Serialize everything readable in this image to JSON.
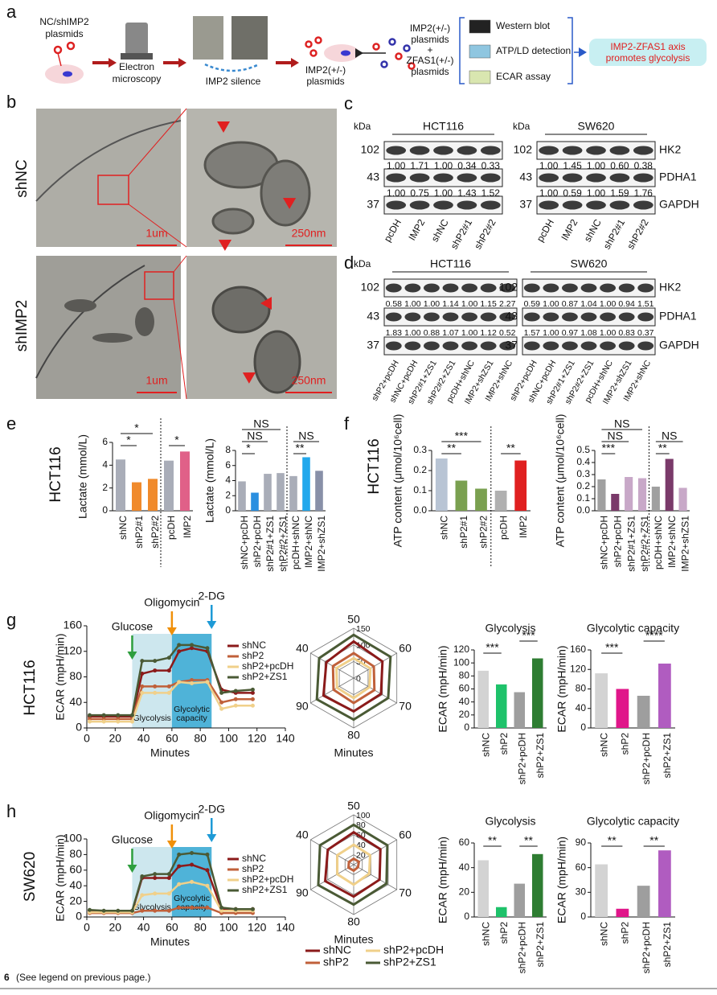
{
  "figure_number": "6",
  "caption": "(See legend on previous page.)",
  "a": {
    "letter": "a",
    "plasmid_label": [
      "NC/shIMP2",
      "plasmids"
    ],
    "microscopy_label": [
      "Electron",
      "microscopy"
    ],
    "silence_label": "IMP2 silence",
    "imp2_label": [
      "IMP2(+/-)",
      "plasmids"
    ],
    "combo_label": [
      "IMP2(+/-)",
      "plasmids",
      "+",
      "ZFAS1(+/-)",
      "plasmids"
    ],
    "assays": [
      "Western blot",
      "ATP/LD detection",
      "ECAR assay"
    ],
    "result": [
      "IMP2-ZFAS1 axis",
      "promotes glycolysis"
    ]
  },
  "b": {
    "letter": "b",
    "rows": [
      "shNC",
      "shIMP2"
    ],
    "scale_low": "1um",
    "scale_high": "250nm"
  },
  "c": {
    "letter": "c",
    "kda": "kDa",
    "markers": [
      "102",
      "43",
      "37"
    ],
    "proteins": [
      "HK2",
      "PDHA1",
      "GAPDH"
    ],
    "lanes": [
      "pcDH",
      "IMP2",
      "shNC",
      "shP2#1",
      "shP2#2"
    ],
    "blots": [
      {
        "cell": "HCT116",
        "quant": [
          [
            "1.00",
            "1.71",
            "1.00",
            "0.34",
            "0.33"
          ],
          [
            "1.00",
            "0.75",
            "1.00",
            "1.43",
            "1.52"
          ]
        ]
      },
      {
        "cell": "SW620",
        "quant": [
          [
            "1.00",
            "1.45",
            "1.00",
            "0.60",
            "0.38"
          ],
          [
            "1.00",
            "0.59",
            "1.00",
            "1.59",
            "1.76"
          ]
        ]
      }
    ]
  },
  "d": {
    "letter": "d",
    "kda": "kDa",
    "markers": [
      "102",
      "43",
      "37"
    ],
    "proteins": [
      "HK2",
      "PDHA1",
      "GAPDH"
    ],
    "lanes": [
      "shP2+pcDH",
      "shNC+pcDH",
      "shP2#1+ZS1",
      "shP2#2+ZS1",
      "pcDH+shNC",
      "IMP2+shZS1",
      "IMP2+shNC"
    ],
    "blots": [
      {
        "cell": "HCT116",
        "quant": [
          [
            "0.58",
            "1.00",
            "1.00",
            "1.14",
            "1.00",
            "1.15",
            "2.27"
          ],
          [
            "1.83",
            "1.00",
            "0.88",
            "1.07",
            "1.00",
            "1.12",
            "0.52"
          ]
        ]
      },
      {
        "cell": "SW620",
        "quant": [
          [
            "0.59",
            "1.00",
            "0.87",
            "1.04",
            "1.00",
            "0.94",
            "1.51"
          ],
          [
            "1.57",
            "1.00",
            "0.97",
            "1.08",
            "1.00",
            "0.83",
            "0.37"
          ]
        ]
      }
    ]
  },
  "e": {
    "letter": "e",
    "cell": "HCT116",
    "charts": [
      {
        "type": "bar",
        "y_label": "Lactate (mmol/L)",
        "categories": [
          "shNC",
          "shP2#1",
          "shP2#2",
          "pcDH",
          "IMP2"
        ],
        "values": [
          4.5,
          2.5,
          2.8,
          4.4,
          5.2
        ],
        "colors": [
          "#a9adb8",
          "#f08a2c",
          "#f08a2c",
          "#a9adb8",
          "#e06088"
        ],
        "ylim": [
          0,
          6
        ],
        "yticks": [
          0,
          2,
          4,
          6
        ],
        "significance": [
          "*",
          "*",
          "*"
        ]
      },
      {
        "type": "bar",
        "y_label": "Lactate (mmol/L)",
        "categories": [
          "shNC+pcDH",
          "shP2+pcDH",
          "shP2#1+ZS1",
          "shP2#2+ZS1",
          "pcDH+shNC",
          "IMP2+shNC",
          "IMP2+shZS1"
        ],
        "values": [
          3.9,
          2.4,
          4.9,
          5.0,
          4.6,
          7.1,
          5.3
        ],
        "colors": [
          "#a9adb8",
          "#2a8fe0",
          "#a9adb8",
          "#a9adb8",
          "#a9adb8",
          "#22a8ec",
          "#8890a8"
        ],
        "ylim": [
          0,
          8
        ],
        "yticks": [
          0,
          2,
          4,
          6,
          8
        ],
        "significance": [
          "NS",
          "NS",
          "*",
          "NS",
          "**"
        ]
      }
    ]
  },
  "f": {
    "letter": "f",
    "cell": "HCT116",
    "charts": [
      {
        "type": "bar",
        "y_label": "ATP content (μmol/10⁶cell)",
        "categories": [
          "shNC",
          "shP2#1",
          "shP2#2",
          "pcDH",
          "IMP2"
        ],
        "values": [
          0.26,
          0.15,
          0.11,
          0.1,
          0.25
        ],
        "colors": [
          "#b8c4d4",
          "#7aa050",
          "#7aa050",
          "#b0b0b0",
          "#e02020"
        ],
        "ylim": [
          0,
          0.3
        ],
        "yticks": [
          {
            "value": 0,
            "label": "0.0"
          },
          0.1,
          0.2,
          0.3
        ],
        "significance": [
          "***",
          "**",
          "**"
        ]
      },
      {
        "type": "bar",
        "y_label": "ATP content (μmol/10⁶cell)",
        "categories": [
          "shNC+pcDH",
          "shP2+pcDH",
          "shP2#1+ZS1",
          "shP2#2+ZS1",
          "pcDH+shNC",
          "IMP2+shNC",
          "IMP2+shZS1"
        ],
        "values": [
          0.26,
          0.14,
          0.28,
          0.27,
          0.2,
          0.43,
          0.19
        ],
        "colors": [
          "#a0a0a0",
          "#7a3a6a",
          "#c8a8c8",
          "#c8a8c8",
          "#a0a0a0",
          "#7a3a6a",
          "#c8a8c8"
        ],
        "ylim": [
          0,
          0.5
        ],
        "yticks": [
          {
            "value": 0,
            "label": "0.0"
          },
          0.1,
          0.2,
          0.3,
          0.4,
          0.5
        ],
        "significance": [
          "NS",
          "NS",
          "***",
          "NS",
          "**"
        ]
      }
    ]
  },
  "g": {
    "letter": "g",
    "cell": "HCT116",
    "line": {
      "type": "line",
      "x_label": "Minutes",
      "y_label": "ECAR (mpH/min)",
      "x": [
        2,
        12,
        22,
        32,
        39,
        48,
        58,
        65,
        74,
        85,
        95,
        105,
        117
      ],
      "xlim": [
        0,
        140
      ],
      "xticks": [
        0,
        20,
        40,
        60,
        80,
        100,
        120,
        140
      ],
      "ylim": [
        0,
        160
      ],
      "yticks": [
        0,
        40,
        80,
        120,
        160
      ],
      "markers": [
        {
          "label": "Glucose",
          "x": 32,
          "color": "#2e9e3e"
        },
        {
          "label": "Oligomycin",
          "x": 60,
          "color": "#f0900a"
        },
        {
          "label": "2-DG",
          "x": 88,
          "color": "#1e9ad6"
        }
      ],
      "regions": [
        {
          "label": [
            "Glycolysis"
          ],
          "from": 32,
          "to": 60,
          "color": "#cde7ee"
        },
        {
          "label": [
            "Glycolytic",
            "capacity"
          ],
          "from": 60,
          "to": 88,
          "color": "#4fb3d8"
        }
      ],
      "series": [
        {
          "name": "shNC",
          "color": "#8b1a1a",
          "values": [
            18,
            18,
            18,
            18,
            85,
            90,
            90,
            120,
            125,
            120,
            60,
            55,
            55
          ]
        },
        {
          "name": "shP2",
          "color": "#c0603a",
          "values": [
            14,
            14,
            14,
            14,
            65,
            65,
            65,
            72,
            75,
            75,
            40,
            45,
            45
          ]
        },
        {
          "name": "shP2+pcDH",
          "color": "#f0d08a",
          "values": [
            10,
            10,
            10,
            10,
            55,
            55,
            55,
            72,
            70,
            72,
            30,
            35,
            35
          ]
        },
        {
          "name": "shP2+ZS1",
          "color": "#4a5a35",
          "values": [
            20,
            20,
            20,
            20,
            105,
            105,
            110,
            130,
            130,
            125,
            55,
            58,
            60
          ]
        }
      ]
    },
    "radar": {
      "type": "radar",
      "x_label": "Minutes",
      "axes": [
        "50",
        "60",
        "70",
        "80",
        "90",
        "40"
      ],
      "rlim": [
        0,
        150
      ],
      "rticks": [
        0,
        50,
        100,
        150
      ],
      "series": [
        {
          "color": "#8b1a1a",
          "values": [
            110,
            100,
            95,
            100,
            105,
            95
          ]
        },
        {
          "color": "#c0603a",
          "values": [
            75,
            70,
            72,
            75,
            70,
            72
          ]
        },
        {
          "color": "#f0d08a",
          "values": [
            60,
            58,
            55,
            60,
            58,
            60
          ]
        },
        {
          "color": "#4a5a35",
          "values": [
            130,
            128,
            120,
            125,
            128,
            120
          ]
        }
      ]
    },
    "bars": [
      {
        "type": "bar",
        "title": "Glycolysis",
        "y_label": "ECAR (mpH/min)",
        "categories": [
          "shNC",
          "shP2",
          "shP2+pcDH",
          "shP2+ZS1"
        ],
        "values": [
          88,
          67,
          55,
          107
        ],
        "colors": [
          "#d3d3d3",
          "#1ec26a",
          "#9e9e9e",
          "#2e7d32"
        ],
        "ylim": [
          0,
          120
        ],
        "yticks": [
          0,
          20,
          40,
          60,
          80,
          100,
          120
        ],
        "significance": [
          "***",
          "***"
        ]
      },
      {
        "type": "bar",
        "title": "Glycolytic capacity",
        "y_label": "ECAR (mpH/min)",
        "categories": [
          "shNC",
          "shP2",
          "shP2+pcDH",
          "shP2+ZS1"
        ],
        "values": [
          112,
          80,
          66,
          132
        ],
        "colors": [
          "#d3d3d3",
          "#e0168a",
          "#9e9e9e",
          "#b05cc0"
        ],
        "ylim": [
          0,
          160
        ],
        "yticks": [
          0,
          40,
          80,
          120,
          160
        ],
        "significance": [
          "***",
          "****"
        ]
      }
    ]
  },
  "h": {
    "letter": "h",
    "cell": "SW620",
    "line": {
      "type": "line",
      "x_label": "Minutes",
      "y_label": "ECAR (mpH/min)",
      "x": [
        2,
        12,
        22,
        32,
        39,
        48,
        58,
        65,
        74,
        85,
        95,
        105,
        117
      ],
      "xlim": [
        0,
        140
      ],
      "xticks": [
        0,
        20,
        40,
        60,
        80,
        100,
        120,
        140
      ],
      "ylim": [
        0,
        100
      ],
      "yticks": [
        0,
        20,
        40,
        60,
        80,
        100
      ],
      "markers": [
        {
          "label": "Glucose",
          "x": 32,
          "color": "#2e9e3e"
        },
        {
          "label": "Oligomycin",
          "x": 60,
          "color": "#f0900a"
        },
        {
          "label": "2-DG",
          "x": 88,
          "color": "#1e9ad6"
        }
      ],
      "regions": [
        {
          "label": [
            "Glycolysis"
          ],
          "from": 32,
          "to": 60,
          "color": "#cde7ee"
        },
        {
          "label": [
            "Glycolytic",
            "capacity"
          ],
          "from": 60,
          "to": 88,
          "color": "#4fb3d8"
        }
      ],
      "series": [
        {
          "name": "shNC",
          "color": "#8b1a1a",
          "values": [
            8,
            7,
            7,
            7,
            50,
            50,
            50,
            65,
            67,
            60,
            10,
            10,
            10
          ]
        },
        {
          "name": "shP2",
          "color": "#c0603a",
          "values": [
            5,
            5,
            5,
            5,
            8,
            8,
            8,
            12,
            12,
            12,
            5,
            5,
            5
          ]
        },
        {
          "name": "shP2+pcDH",
          "color": "#f0d08a",
          "values": [
            6,
            6,
            6,
            6,
            28,
            30,
            30,
            42,
            45,
            40,
            8,
            8,
            8
          ]
        },
        {
          "name": "shP2+ZS1",
          "color": "#4a5a35",
          "values": [
            9,
            8,
            8,
            8,
            52,
            55,
            55,
            80,
            82,
            80,
            12,
            10,
            10
          ]
        }
      ]
    },
    "radar": {
      "type": "radar",
      "x_label": "Minutes",
      "axes": [
        "50",
        "60",
        "70",
        "80",
        "90",
        "40"
      ],
      "rlim": [
        0,
        100
      ],
      "rticks": [
        20,
        40,
        60,
        80,
        100
      ],
      "series": [
        {
          "color": "#8b1a1a",
          "values": [
            65,
            62,
            60,
            64,
            66,
            60
          ]
        },
        {
          "color": "#c0603a",
          "values": [
            12,
            12,
            10,
            12,
            12,
            11
          ]
        },
        {
          "color": "#f0d08a",
          "values": [
            40,
            38,
            36,
            40,
            38,
            38
          ]
        },
        {
          "color": "#4a5a35",
          "values": [
            80,
            78,
            76,
            80,
            82,
            78
          ]
        }
      ]
    },
    "bars": [
      {
        "type": "bar",
        "title": "Glycolysis",
        "y_label": "ECAR (mpH/min)",
        "categories": [
          "shNC",
          "shP2",
          "shP2+pcDH",
          "shP2+ZS1"
        ],
        "values": [
          46,
          8,
          27,
          51
        ],
        "colors": [
          "#d3d3d3",
          "#1ec26a",
          "#9e9e9e",
          "#2e7d32"
        ],
        "ylim": [
          0,
          60
        ],
        "yticks": [
          0,
          20,
          40,
          60
        ],
        "significance": [
          "**",
          "**"
        ]
      },
      {
        "type": "bar",
        "title": "Glycolytic capacity",
        "y_label": "ECAR (mpH/min)",
        "categories": [
          "shNC",
          "shP2",
          "shP2+pcDH",
          "shP2+ZS1"
        ],
        "values": [
          64,
          10,
          38,
          81
        ],
        "colors": [
          "#d3d3d3",
          "#e0168a",
          "#9e9e9e",
          "#b05cc0"
        ],
        "ylim": [
          0,
          90
        ],
        "yticks": [
          0,
          30,
          60,
          90
        ],
        "significance": [
          "**",
          "**"
        ]
      }
    ]
  }
}
